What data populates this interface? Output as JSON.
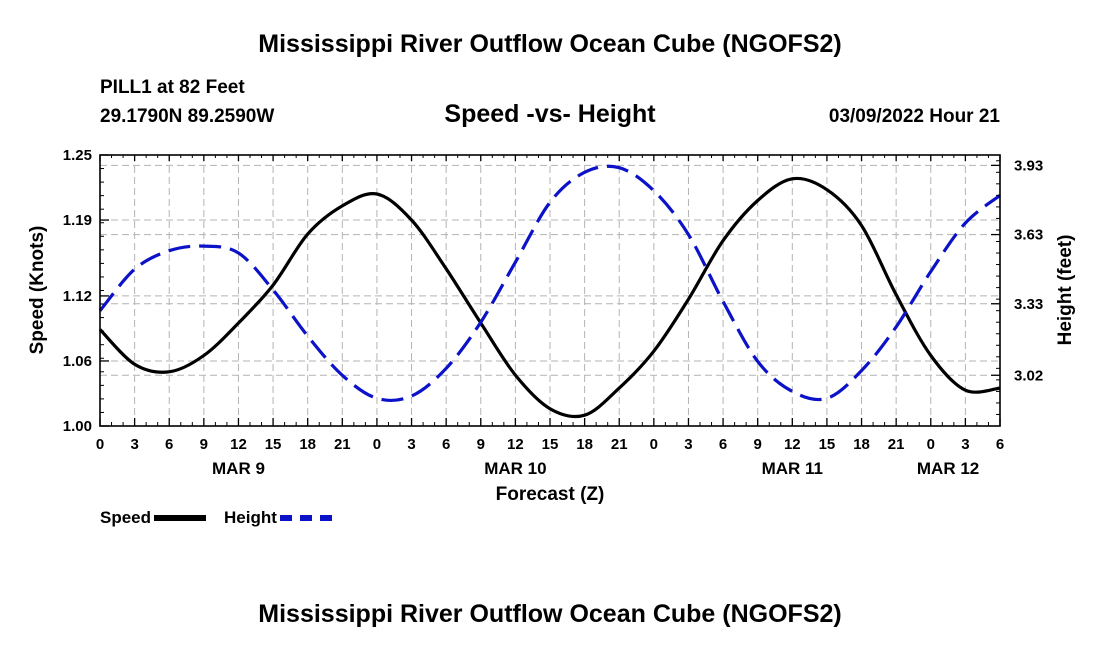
{
  "page": {
    "title_top": "Mississippi River Outflow Ocean Cube (NGOFS2)",
    "title_bottom": "Mississippi River Outflow Ocean Cube (NGOFS2)",
    "station": "PILL1 at 82 Feet",
    "coords": "29.1790N  89.2590W",
    "subtitle": "Speed -vs- Height",
    "run_time": "03/09/2022 Hour 21"
  },
  "colors": {
    "speed": "#000000",
    "height": "#0b12c8",
    "grid": "#b3b3b3"
  },
  "chart_data": {
    "type": "line",
    "title": "Speed -vs- Height",
    "xlabel": "Forecast (Z)",
    "ylabel": "Speed (Knots)",
    "y2label": "Height (feet)",
    "x_range_hours": [
      0,
      78
    ],
    "x_tick_step_hours": 3,
    "x_tick_labels": [
      "0",
      "3",
      "6",
      "9",
      "12",
      "15",
      "18",
      "21",
      "0",
      "3",
      "6",
      "9",
      "12",
      "15",
      "18",
      "21",
      "0",
      "3",
      "6",
      "9",
      "12",
      "15",
      "18",
      "21",
      "0",
      "3",
      "6"
    ],
    "date_labels": [
      {
        "label": "MAR 9",
        "hour": 12
      },
      {
        "label": "MAR 10",
        "hour": 36
      },
      {
        "label": "MAR 11",
        "hour": 60
      },
      {
        "label": "MAR 12",
        "hour": 73.5
      }
    ],
    "ylim": [
      1.0,
      1.25
    ],
    "y_ticks": [
      "1.00",
      "1.06",
      "1.12",
      "1.19",
      "1.25"
    ],
    "y2lim": [
      2.8,
      3.975
    ],
    "y2_ticks": [
      "3.02",
      "3.33",
      "3.63",
      "3.93"
    ],
    "grid": true,
    "legend": "bottom-left",
    "series": [
      {
        "name": "Speed",
        "axis": "left",
        "style": "solid",
        "x": [
          0,
          3,
          6,
          9,
          12,
          15,
          18,
          21,
          24,
          27,
          30,
          33,
          36,
          39,
          42,
          45,
          48,
          51,
          54,
          57,
          60,
          63,
          66,
          69,
          72,
          75,
          78
        ],
        "values": [
          1.089,
          1.057,
          1.05,
          1.065,
          1.095,
          1.13,
          1.177,
          1.203,
          1.214,
          1.19,
          1.145,
          1.095,
          1.047,
          1.016,
          1.01,
          1.035,
          1.069,
          1.117,
          1.171,
          1.208,
          1.228,
          1.218,
          1.185,
          1.121,
          1.065,
          1.033,
          1.035
        ]
      },
      {
        "name": "Height",
        "axis": "right",
        "style": "dashed",
        "x": [
          0,
          3,
          6,
          9,
          12,
          15,
          18,
          21,
          24,
          27,
          30,
          33,
          36,
          39,
          42,
          45,
          48,
          51,
          54,
          57,
          60,
          63,
          66,
          69,
          72,
          75,
          78
        ],
        "values": [
          3.3,
          3.48,
          3.56,
          3.58,
          3.55,
          3.39,
          3.19,
          3.02,
          2.92,
          2.93,
          3.05,
          3.25,
          3.51,
          3.77,
          3.9,
          3.92,
          3.82,
          3.63,
          3.34,
          3.08,
          2.95,
          2.92,
          3.04,
          3.23,
          3.47,
          3.68,
          3.8
        ]
      }
    ]
  }
}
